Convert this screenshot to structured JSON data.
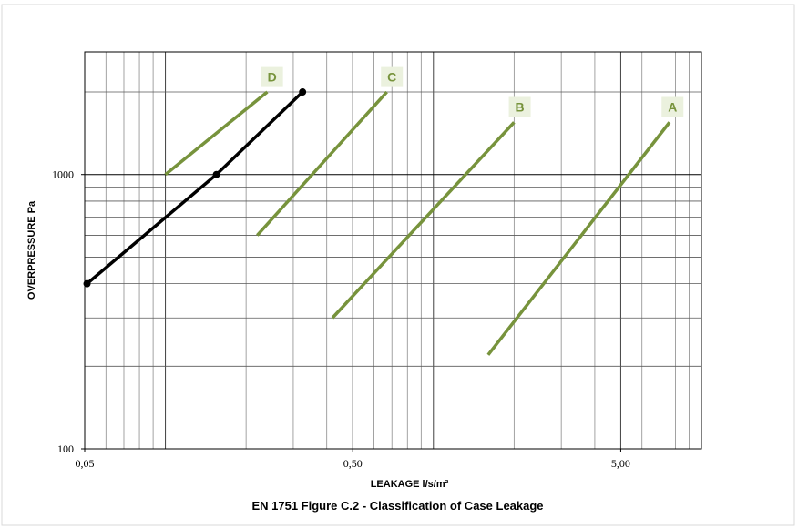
{
  "chart_data": {
    "type": "line",
    "title": "EN 1751 Figure C.2 - Classification of Case Leakage",
    "xlabel": "LEAKAGE l/s/m²",
    "ylabel": "OVERPRESSURE Pa",
    "x_scale": "log",
    "y_scale": "log",
    "xlim": [
      0.05,
      10
    ],
    "ylim": [
      100,
      2800
    ],
    "x_ticks": [
      {
        "value": 0.05,
        "label": "0,05"
      },
      {
        "value": 0.5,
        "label": "0,50"
      },
      {
        "value": 5,
        "label": "5,00"
      }
    ],
    "y_ticks": [
      {
        "value": 100,
        "label": "100"
      },
      {
        "value": 1000,
        "label": "1000"
      }
    ],
    "grid": true,
    "colors": {
      "class_line": "#77933c",
      "measured_line": "#000000",
      "label_bg": "#ebf1de"
    },
    "class_lines": [
      {
        "name": "A",
        "x": [
          1.6,
          7.6
        ],
        "y": [
          220,
          1550
        ],
        "label_at": [
          7.8,
          1750
        ]
      },
      {
        "name": "B",
        "x": [
          0.42,
          2.0
        ],
        "y": [
          300,
          1550
        ],
        "label_at": [
          2.1,
          1750
        ]
      },
      {
        "name": "C",
        "x": [
          0.22,
          0.67
        ],
        "y": [
          600,
          2000
        ],
        "label_at": [
          0.7,
          2250
        ]
      },
      {
        "name": "D",
        "x": [
          0.1,
          0.24
        ],
        "y": [
          1000,
          2000
        ],
        "label_at": [
          0.25,
          2250
        ]
      }
    ],
    "series": [
      {
        "x": [
          0.051,
          0.155,
          0.325
        ],
        "y": [
          400,
          1000,
          2000
        ]
      }
    ]
  }
}
